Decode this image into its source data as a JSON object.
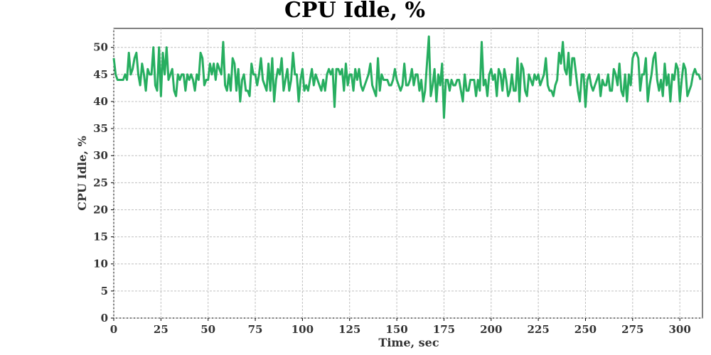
{
  "chart_data": {
    "type": "line",
    "title": "CPU Idle, %",
    "xlabel": "Time, sec",
    "ylabel": "CPU Idle, %",
    "xlim": [
      0,
      312
    ],
    "ylim": [
      0,
      53.5
    ],
    "xticks": [
      0,
      25,
      50,
      75,
      100,
      125,
      150,
      175,
      200,
      225,
      250,
      275,
      300
    ],
    "yticks": [
      0,
      5,
      10,
      15,
      20,
      25,
      30,
      35,
      40,
      45,
      50
    ],
    "grid": true,
    "legend": "none",
    "line_color": "#27ae60",
    "x_start": 0,
    "x_step": 1,
    "series": [
      {
        "values": [
          48,
          45,
          44,
          44,
          44,
          44,
          45,
          44,
          49,
          45,
          46,
          48,
          49,
          45,
          43,
          47,
          45,
          42,
          46,
          45,
          45,
          50,
          43,
          42,
          50,
          41,
          49,
          45,
          50,
          44,
          45,
          46,
          42,
          41,
          45,
          44,
          45,
          45,
          42,
          45,
          44,
          45,
          44,
          42,
          45,
          44,
          49,
          48,
          43,
          44,
          44,
          47,
          45,
          47,
          44,
          47,
          46,
          45,
          51,
          43,
          42,
          45,
          42,
          48,
          47,
          42,
          46,
          40,
          44,
          45,
          42,
          42,
          41,
          47,
          45,
          45,
          43,
          45,
          48,
          44,
          43,
          42,
          47,
          42,
          48,
          40,
          44,
          46,
          45,
          48,
          42,
          44,
          46,
          42,
          44,
          49,
          45,
          45,
          40,
          44,
          46,
          42,
          43,
          42,
          44,
          46,
          43,
          45,
          44,
          43,
          42,
          44,
          42,
          45,
          46,
          45,
          46,
          39,
          46,
          46,
          45,
          46,
          42,
          47,
          43,
          45,
          45,
          42,
          46,
          44,
          46,
          43,
          42,
          43,
          44,
          45,
          47,
          43,
          42,
          41,
          48,
          42,
          45,
          44,
          44,
          44,
          43,
          43,
          44,
          46,
          44,
          43,
          42,
          43,
          47,
          43,
          43,
          44,
          46,
          43,
          45,
          45,
          42,
          44,
          40,
          42,
          47,
          52,
          41,
          43,
          46,
          40,
          45,
          43,
          47,
          37,
          44,
          44,
          42,
          44,
          43,
          43,
          44,
          44,
          42,
          40,
          45,
          42,
          42,
          44,
          44,
          44,
          41,
          44,
          42,
          51,
          43,
          44,
          41,
          45,
          46,
          44,
          45,
          41,
          46,
          45,
          42,
          46,
          44,
          41,
          42,
          45,
          42,
          42,
          48,
          40,
          47,
          46,
          42,
          41,
          45,
          44,
          43,
          45,
          44,
          45,
          43,
          44,
          45,
          48,
          43,
          42,
          42,
          41,
          43,
          44,
          49,
          47,
          51,
          46,
          45,
          49,
          43,
          48,
          48,
          45,
          42,
          40,
          45,
          45,
          39,
          44,
          45,
          43,
          42,
          43,
          44,
          45,
          41,
          44,
          43,
          43,
          45,
          42,
          42,
          46,
          45,
          43,
          47,
          42,
          41,
          45,
          40,
          45,
          43,
          48,
          49,
          49,
          48,
          42,
          45,
          45,
          48,
          40,
          43,
          45,
          48,
          49,
          44,
          42,
          44,
          41,
          47,
          43,
          45,
          40,
          45,
          44,
          47,
          46,
          40,
          44,
          47,
          46,
          41,
          42,
          43,
          45,
          46,
          45,
          45,
          44
        ]
      }
    ]
  }
}
